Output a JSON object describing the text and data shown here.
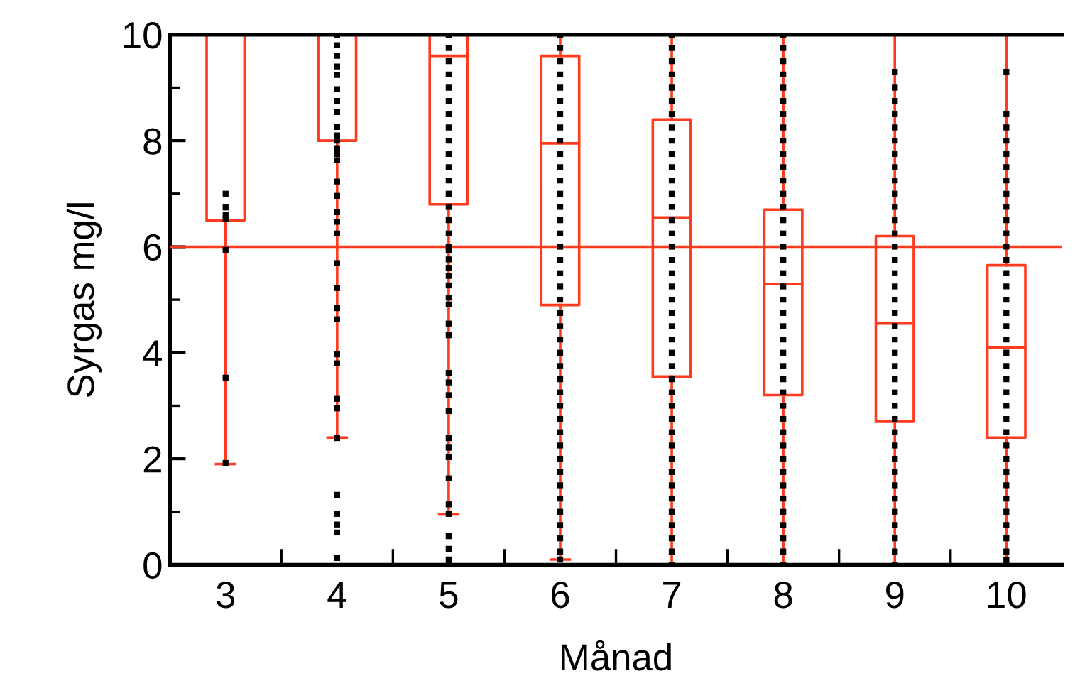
{
  "chart_data": {
    "type": "box",
    "xlabel": "Månad",
    "ylabel": "Syrgas mg/l",
    "categories": [
      "3",
      "4",
      "5",
      "6",
      "7",
      "8",
      "9",
      "10"
    ],
    "color": "#ff3b1f",
    "boxes": [
      {
        "low": 1.9,
        "q1": 6.5,
        "median": 10,
        "q3": 10,
        "high": 10
      },
      {
        "low": 2.4,
        "q1": 8.0,
        "median": 10,
        "q3": 10,
        "high": 10
      },
      {
        "low": 0.95,
        "q1": 6.8,
        "median": 9.6,
        "q3": 10,
        "high": 10
      },
      {
        "low": 0.1,
        "q1": 4.9,
        "median": 7.95,
        "q3": 9.6,
        "high": 10
      },
      {
        "low": 0,
        "q1": 3.55,
        "median": 6.55,
        "q3": 8.4,
        "high": 10
      },
      {
        "low": 0,
        "q1": 3.2,
        "median": 5.3,
        "q3": 6.7,
        "high": 10
      },
      {
        "low": 0,
        "q1": 2.7,
        "median": 4.55,
        "q3": 6.2,
        "high": 10
      },
      {
        "low": 0,
        "q1": 2.4,
        "median": 4.1,
        "q3": 5.65,
        "high": 10
      }
    ],
    "series": [
      {
        "type": "scatter",
        "color": "#000000",
        "marker": "square",
        "x": [
          "3",
          "3",
          "3",
          "3",
          "3",
          "3",
          "3"
        ],
        "values": [
          7.0,
          6.74,
          6.6,
          6.52,
          5.94,
          3.53,
          1.92
        ]
      },
      {
        "type": "scatter",
        "color": "#000000",
        "marker": "square",
        "x": [
          "4",
          "4",
          "4",
          "4",
          "4",
          "4",
          "4",
          "4",
          "4",
          "4",
          "4",
          "4",
          "4",
          "4",
          "4",
          "4",
          "4",
          "4",
          "4",
          "4",
          "4",
          "4",
          "4",
          "4",
          "4",
          "4",
          "4",
          "4",
          "4",
          "4",
          "4",
          "4",
          "4"
        ],
        "values": [
          10,
          9.8,
          9.6,
          9.4,
          9.24,
          8.97,
          8.75,
          8.54,
          8.26,
          8.1,
          8.0,
          7.86,
          7.75,
          7.63,
          7.23,
          6.96,
          6.65,
          6.47,
          6.25,
          5.69,
          5.22,
          4.84,
          4.63,
          3.97,
          3.8,
          3.13,
          2.95,
          2.39,
          1.32,
          0.96,
          0.76,
          0.61,
          0.13
        ]
      },
      {
        "type": "scatter",
        "color": "#000000",
        "marker": "square",
        "x": [
          "5",
          "5",
          "5",
          "5",
          "5",
          "5",
          "5",
          "5",
          "5",
          "5",
          "5",
          "5",
          "5",
          "5",
          "5",
          "5",
          "5",
          "5",
          "5",
          "5",
          "5",
          "5",
          "5",
          "5",
          "5",
          "5",
          "5",
          "5",
          "5",
          "5",
          "5",
          "5",
          "5",
          "5",
          "5",
          "5",
          "5",
          "5",
          "5",
          "5"
        ],
        "values": [
          10,
          9.75,
          9.5,
          9.25,
          9,
          8.75,
          8.5,
          8.25,
          8,
          7.75,
          7.5,
          7.25,
          7,
          6.75,
          6.5,
          6.25,
          6,
          5.94,
          5.76,
          5.6,
          5.45,
          5.27,
          5.04,
          4.91,
          4.55,
          4.33,
          3.62,
          3.44,
          3.2,
          2.9,
          2.39,
          2.21,
          2.03,
          1.63,
          1.14,
          0.96,
          0.54,
          0.3,
          0.1,
          0
        ]
      },
      {
        "type": "scatter",
        "color": "#000000",
        "marker": "square",
        "x": [
          "6",
          "6",
          "6",
          "6",
          "6",
          "6",
          "6",
          "6",
          "6",
          "6",
          "6",
          "6",
          "6",
          "6",
          "6",
          "6",
          "6",
          "6",
          "6",
          "6",
          "6",
          "6",
          "6",
          "6",
          "6",
          "6",
          "6",
          "6",
          "6",
          "6",
          "6",
          "6",
          "6",
          "6",
          "6",
          "6",
          "6",
          "6",
          "6",
          "6",
          "6"
        ],
        "values": [
          10,
          9.75,
          9.5,
          9.25,
          9,
          8.75,
          8.5,
          8.25,
          8,
          7.75,
          7.5,
          7.25,
          7,
          6.75,
          6.5,
          6.25,
          6,
          5.75,
          5.5,
          5.25,
          5,
          4.75,
          4.5,
          4.25,
          4,
          3.75,
          3.5,
          3.25,
          3,
          2.75,
          2.5,
          2.25,
          2,
          1.75,
          1.5,
          1.25,
          1,
          0.75,
          0.5,
          0.25,
          0.1
        ]
      },
      {
        "type": "scatter",
        "color": "#000000",
        "marker": "square",
        "x": [
          "7",
          "7",
          "7",
          "7",
          "7",
          "7",
          "7",
          "7",
          "7",
          "7",
          "7",
          "7",
          "7",
          "7",
          "7",
          "7",
          "7",
          "7",
          "7",
          "7",
          "7",
          "7",
          "7",
          "7",
          "7",
          "7",
          "7",
          "7",
          "7",
          "7",
          "7",
          "7",
          "7",
          "7",
          "7",
          "7",
          "7",
          "7",
          "7",
          "7",
          "7"
        ],
        "values": [
          10,
          9.75,
          9.5,
          9.25,
          9,
          8.75,
          8.5,
          8.25,
          8,
          7.75,
          7.5,
          7.25,
          7,
          6.75,
          6.5,
          6.25,
          6,
          5.75,
          5.5,
          5.25,
          5,
          4.75,
          4.5,
          4.25,
          4,
          3.75,
          3.5,
          3.25,
          3,
          2.75,
          2.5,
          2.25,
          2,
          1.75,
          1.5,
          1.25,
          1,
          0.75,
          0.5,
          0.25,
          0
        ]
      },
      {
        "type": "scatter",
        "color": "#000000",
        "marker": "square",
        "x": [
          "8",
          "8",
          "8",
          "8",
          "8",
          "8",
          "8",
          "8",
          "8",
          "8",
          "8",
          "8",
          "8",
          "8",
          "8",
          "8",
          "8",
          "8",
          "8",
          "8",
          "8",
          "8",
          "8",
          "8",
          "8",
          "8",
          "8",
          "8",
          "8",
          "8",
          "8",
          "8",
          "8",
          "8",
          "8",
          "8",
          "8",
          "8",
          "8",
          "8",
          "8"
        ],
        "values": [
          10,
          9.75,
          9.5,
          9.25,
          9,
          8.75,
          8.5,
          8.25,
          8,
          7.75,
          7.5,
          7.25,
          7,
          6.75,
          6.5,
          6.25,
          6,
          5.75,
          5.5,
          5.25,
          5,
          4.75,
          4.5,
          4.25,
          4,
          3.75,
          3.5,
          3.25,
          3,
          2.75,
          2.5,
          2.25,
          2,
          1.75,
          1.5,
          1.25,
          1,
          0.75,
          0.5,
          0.25,
          0
        ]
      },
      {
        "type": "scatter",
        "color": "#000000",
        "marker": "square",
        "x": [
          "9",
          "9",
          "9",
          "9",
          "9",
          "9",
          "9",
          "9",
          "9",
          "9",
          "9",
          "9",
          "9",
          "9",
          "9",
          "9",
          "9",
          "9",
          "9",
          "9",
          "9",
          "9",
          "9",
          "9",
          "9",
          "9",
          "9",
          "9",
          "9",
          "9",
          "9",
          "9",
          "9",
          "9",
          "9",
          "9",
          "9",
          "9"
        ],
        "values": [
          9.3,
          9,
          8.75,
          8.5,
          8.25,
          8,
          7.75,
          7.5,
          7.25,
          7,
          6.75,
          6.5,
          6.25,
          6,
          5.75,
          5.5,
          5.25,
          5,
          4.75,
          4.5,
          4.25,
          4,
          3.75,
          3.5,
          3.25,
          3,
          2.75,
          2.5,
          2.25,
          2,
          1.75,
          1.5,
          1.25,
          1,
          0.75,
          0.5,
          0.25,
          0
        ]
      },
      {
        "type": "scatter",
        "color": "#000000",
        "marker": "square",
        "x": [
          "10",
          "10",
          "10",
          "10",
          "10",
          "10",
          "10",
          "10",
          "10",
          "10",
          "10",
          "10",
          "10",
          "10",
          "10",
          "10",
          "10",
          "10",
          "10",
          "10",
          "10",
          "10",
          "10",
          "10",
          "10",
          "10",
          "10",
          "10",
          "10",
          "10",
          "10",
          "10",
          "10",
          "10",
          "10",
          "10",
          "10"
        ],
        "values": [
          9.3,
          8.5,
          8.25,
          8,
          7.75,
          7.5,
          7.25,
          7,
          6.75,
          6.5,
          6.25,
          6,
          5.75,
          5.5,
          5.25,
          5,
          4.75,
          4.5,
          4.25,
          4,
          3.75,
          3.5,
          3.25,
          3,
          2.75,
          2.5,
          2.25,
          2,
          1.75,
          1.5,
          1.25,
          1,
          0.75,
          0.5,
          0.25,
          0.1,
          0
        ]
      }
    ],
    "ref_lines": [
      {
        "axis": "y",
        "value": 6,
        "color": "#ff3b1f"
      }
    ],
    "ylim": [
      0,
      10
    ],
    "yticks": [
      0,
      2,
      4,
      6,
      8,
      10
    ],
    "grid": false,
    "legend": false
  }
}
